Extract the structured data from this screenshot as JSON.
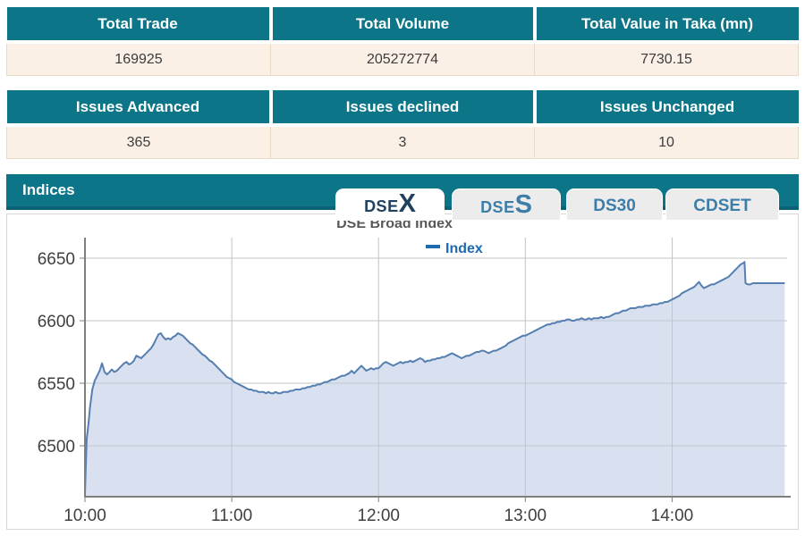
{
  "colors": {
    "accent_teal": "#0d7588",
    "accent_teal_dark": "#0a6274",
    "row_cream": "#faf0e5",
    "tab_active_text": "#20415f",
    "tab_inactive_text": "#3d7ea9",
    "line": "#557fb0",
    "fill": "#b9c9e3",
    "grid": "#c3c3c3",
    "axis": "#7f7f7f",
    "tick_text": "#3f3f3f"
  },
  "tables": [
    {
      "headers": [
        "Total Trade",
        "Total Volume",
        "Total Value in Taka (mn)"
      ],
      "values": [
        "169925",
        "205272774",
        "7730.15"
      ]
    },
    {
      "headers": [
        "Issues Advanced",
        "Issues declined",
        "Issues Unchanged"
      ],
      "values": [
        "365",
        "3",
        "10"
      ]
    }
  ],
  "indices": {
    "section_title": "Indices",
    "tabs": [
      {
        "prefix": "DSE",
        "big": "X",
        "label": "DSEX",
        "active": true
      },
      {
        "prefix": "DSE",
        "big": "S",
        "label": "DSES",
        "active": false
      },
      {
        "label": "DS30",
        "active": false
      },
      {
        "label": "CDSET",
        "active": false
      }
    ]
  },
  "chart_data": {
    "type": "area",
    "title": "DSE Broad Index",
    "legend": [
      {
        "label": "Index",
        "color": "#1e6ab0"
      }
    ],
    "x_unit": "minutes since 10:00",
    "xlim": [
      0,
      287
    ],
    "ylim": [
      6458,
      6668
    ],
    "grid": true,
    "legend_position": "top-center",
    "yticks": [
      6500,
      6550,
      6600,
      6650
    ],
    "xticks": [
      {
        "m": 0,
        "label": "10:00"
      },
      {
        "m": 60,
        "label": "11:00"
      },
      {
        "m": 120,
        "label": "12:00"
      },
      {
        "m": 180,
        "label": "13:00"
      },
      {
        "m": 240,
        "label": "14:00"
      }
    ],
    "line_color": "#557fb0",
    "fill_color": "#b9c9e3",
    "points": [
      [
        0,
        6462
      ],
      [
        0.7,
        6505
      ],
      [
        1.5,
        6519
      ],
      [
        2,
        6530
      ],
      [
        3,
        6545
      ],
      [
        4,
        6552
      ],
      [
        5,
        6556
      ],
      [
        6,
        6560
      ],
      [
        7,
        6566
      ],
      [
        8,
        6559
      ],
      [
        9,
        6557
      ],
      [
        10,
        6559
      ],
      [
        11,
        6561
      ],
      [
        12,
        6559
      ],
      [
        13,
        6560
      ],
      [
        14,
        6562
      ],
      [
        15,
        6564
      ],
      [
        16,
        6566
      ],
      [
        17,
        6567
      ],
      [
        18,
        6565
      ],
      [
        19,
        6566
      ],
      [
        20,
        6568
      ],
      [
        21,
        6572
      ],
      [
        22,
        6571
      ],
      [
        23,
        6570
      ],
      [
        24,
        6572
      ],
      [
        25,
        6574
      ],
      [
        26,
        6576
      ],
      [
        27,
        6578
      ],
      [
        28,
        6581
      ],
      [
        29,
        6585
      ],
      [
        30,
        6589
      ],
      [
        31,
        6590
      ],
      [
        32,
        6587
      ],
      [
        33,
        6585
      ],
      [
        34,
        6586
      ],
      [
        35,
        6585
      ],
      [
        36,
        6587
      ],
      [
        37,
        6588
      ],
      [
        38,
        6590
      ],
      [
        39,
        6589
      ],
      [
        40,
        6588
      ],
      [
        41,
        6586
      ],
      [
        42,
        6584
      ],
      [
        43,
        6582
      ],
      [
        44,
        6581
      ],
      [
        45,
        6579
      ],
      [
        46,
        6577
      ],
      [
        47,
        6575
      ],
      [
        48,
        6573
      ],
      [
        49,
        6572
      ],
      [
        50,
        6570
      ],
      [
        51,
        6568
      ],
      [
        52,
        6567
      ],
      [
        53,
        6565
      ],
      [
        54,
        6563
      ],
      [
        55,
        6561
      ],
      [
        56,
        6559
      ],
      [
        57,
        6557
      ],
      [
        58,
        6555
      ],
      [
        59,
        6554
      ],
      [
        60,
        6553
      ],
      [
        61,
        6551
      ],
      [
        62,
        6550
      ],
      [
        63,
        6549
      ],
      [
        64,
        6548
      ],
      [
        65,
        6547
      ],
      [
        66,
        6546
      ],
      [
        67,
        6545
      ],
      [
        68,
        6545
      ],
      [
        69,
        6544
      ],
      [
        70,
        6544
      ],
      [
        71,
        6543
      ],
      [
        72,
        6543
      ],
      [
        73,
        6543
      ],
      [
        74,
        6542
      ],
      [
        75,
        6543
      ],
      [
        76,
        6542
      ],
      [
        77,
        6542
      ],
      [
        78,
        6543
      ],
      [
        79,
        6542
      ],
      [
        80,
        6542
      ],
      [
        81,
        6543
      ],
      [
        82,
        6543
      ],
      [
        83,
        6543
      ],
      [
        84,
        6544
      ],
      [
        85,
        6544
      ],
      [
        86,
        6545
      ],
      [
        87,
        6545
      ],
      [
        88,
        6545
      ],
      [
        89,
        6546
      ],
      [
        90,
        6546
      ],
      [
        91,
        6547
      ],
      [
        92,
        6547
      ],
      [
        93,
        6548
      ],
      [
        94,
        6548
      ],
      [
        95,
        6549
      ],
      [
        96,
        6549
      ],
      [
        97,
        6550
      ],
      [
        98,
        6551
      ],
      [
        99,
        6551
      ],
      [
        100,
        6552
      ],
      [
        101,
        6553
      ],
      [
        102,
        6553
      ],
      [
        103,
        6554
      ],
      [
        104,
        6555
      ],
      [
        105,
        6556
      ],
      [
        106,
        6556
      ],
      [
        107,
        6557
      ],
      [
        108,
        6558
      ],
      [
        109,
        6560
      ],
      [
        110,
        6558
      ],
      [
        111,
        6560
      ],
      [
        112,
        6562
      ],
      [
        113,
        6564
      ],
      [
        114,
        6562
      ],
      [
        115,
        6560
      ],
      [
        116,
        6561
      ],
      [
        117,
        6562
      ],
      [
        118,
        6561
      ],
      [
        119,
        6562
      ],
      [
        120,
        6562
      ],
      [
        121,
        6564
      ],
      [
        122,
        6566
      ],
      [
        123,
        6567
      ],
      [
        124,
        6566
      ],
      [
        125,
        6565
      ],
      [
        126,
        6564
      ],
      [
        127,
        6565
      ],
      [
        128,
        6566
      ],
      [
        129,
        6567
      ],
      [
        130,
        6566
      ],
      [
        131,
        6567
      ],
      [
        132,
        6567
      ],
      [
        133,
        6568
      ],
      [
        134,
        6567
      ],
      [
        135,
        6568
      ],
      [
        136,
        6569
      ],
      [
        137,
        6570
      ],
      [
        138,
        6569
      ],
      [
        139,
        6567
      ],
      [
        140,
        6568
      ],
      [
        141,
        6568
      ],
      [
        142,
        6569
      ],
      [
        143,
        6569
      ],
      [
        144,
        6570
      ],
      [
        145,
        6570
      ],
      [
        146,
        6571
      ],
      [
        147,
        6571
      ],
      [
        148,
        6572
      ],
      [
        149,
        6573
      ],
      [
        150,
        6574
      ],
      [
        151,
        6573
      ],
      [
        152,
        6572
      ],
      [
        153,
        6571
      ],
      [
        154,
        6570
      ],
      [
        155,
        6571
      ],
      [
        156,
        6572
      ],
      [
        157,
        6572
      ],
      [
        158,
        6573
      ],
      [
        159,
        6574
      ],
      [
        160,
        6575
      ],
      [
        161,
        6575
      ],
      [
        162,
        6576
      ],
      [
        163,
        6576
      ],
      [
        164,
        6575
      ],
      [
        165,
        6574
      ],
      [
        166,
        6575
      ],
      [
        167,
        6576
      ],
      [
        168,
        6576
      ],
      [
        169,
        6577
      ],
      [
        170,
        6578
      ],
      [
        171,
        6579
      ],
      [
        172,
        6580
      ],
      [
        173,
        6582
      ],
      [
        174,
        6583
      ],
      [
        175,
        6584
      ],
      [
        176,
        6585
      ],
      [
        177,
        6586
      ],
      [
        178,
        6587
      ],
      [
        179,
        6588
      ],
      [
        180,
        6588
      ],
      [
        181,
        6589
      ],
      [
        182,
        6590
      ],
      [
        183,
        6591
      ],
      [
        184,
        6592
      ],
      [
        185,
        6593
      ],
      [
        186,
        6594
      ],
      [
        187,
        6595
      ],
      [
        188,
        6596
      ],
      [
        189,
        6597
      ],
      [
        190,
        6597
      ],
      [
        191,
        6598
      ],
      [
        192,
        6598
      ],
      [
        193,
        6599
      ],
      [
        194,
        6599
      ],
      [
        195,
        6600
      ],
      [
        196,
        6600
      ],
      [
        197,
        6601
      ],
      [
        198,
        6601
      ],
      [
        199,
        6600
      ],
      [
        200,
        6600
      ],
      [
        201,
        6601
      ],
      [
        202,
        6601
      ],
      [
        203,
        6602
      ],
      [
        204,
        6601
      ],
      [
        205,
        6601
      ],
      [
        206,
        6602
      ],
      [
        207,
        6601
      ],
      [
        208,
        6602
      ],
      [
        209,
        6602
      ],
      [
        210,
        6602
      ],
      [
        211,
        6603
      ],
      [
        212,
        6602
      ],
      [
        213,
        6603
      ],
      [
        214,
        6603
      ],
      [
        215,
        6604
      ],
      [
        216,
        6605
      ],
      [
        217,
        6606
      ],
      [
        218,
        6606
      ],
      [
        219,
        6607
      ],
      [
        220,
        6608
      ],
      [
        221,
        6608
      ],
      [
        222,
        6609
      ],
      [
        223,
        6610
      ],
      [
        224,
        6610
      ],
      [
        225,
        6610
      ],
      [
        226,
        6611
      ],
      [
        227,
        6611
      ],
      [
        228,
        6611
      ],
      [
        229,
        6612
      ],
      [
        230,
        6612
      ],
      [
        231,
        6612
      ],
      [
        232,
        6613
      ],
      [
        233,
        6613
      ],
      [
        234,
        6613
      ],
      [
        235,
        6614
      ],
      [
        236,
        6614
      ],
      [
        237,
        6615
      ],
      [
        238,
        6615
      ],
      [
        239,
        6616
      ],
      [
        240,
        6617
      ],
      [
        241,
        6618
      ],
      [
        242,
        6619
      ],
      [
        243,
        6620
      ],
      [
        244,
        6622
      ],
      [
        245,
        6623
      ],
      [
        246,
        6624
      ],
      [
        247,
        6625
      ],
      [
        248,
        6626
      ],
      [
        249,
        6627
      ],
      [
        250,
        6629
      ],
      [
        251,
        6631
      ],
      [
        252,
        6628
      ],
      [
        253,
        6626
      ],
      [
        254,
        6627
      ],
      [
        255,
        6628
      ],
      [
        256,
        6629
      ],
      [
        257,
        6629
      ],
      [
        258,
        6630
      ],
      [
        259,
        6631
      ],
      [
        260,
        6632
      ],
      [
        261,
        6633
      ],
      [
        262,
        6634
      ],
      [
        263,
        6635
      ],
      [
        264,
        6637
      ],
      [
        265,
        6639
      ],
      [
        266,
        6641
      ],
      [
        267,
        6643
      ],
      [
        268,
        6645
      ],
      [
        269,
        6646
      ],
      [
        269.6,
        6647
      ],
      [
        270,
        6630
      ],
      [
        271,
        6629
      ],
      [
        272,
        6629
      ],
      [
        273,
        6630
      ],
      [
        274,
        6630
      ],
      [
        275,
        6630
      ],
      [
        276,
        6630
      ],
      [
        277,
        6630
      ],
      [
        278,
        6630
      ],
      [
        279,
        6630
      ],
      [
        280,
        6630
      ],
      [
        281,
        6630
      ],
      [
        282,
        6630
      ],
      [
        283,
        6630
      ],
      [
        284,
        6630
      ],
      [
        285,
        6630
      ],
      [
        286,
        6630
      ]
    ]
  }
}
